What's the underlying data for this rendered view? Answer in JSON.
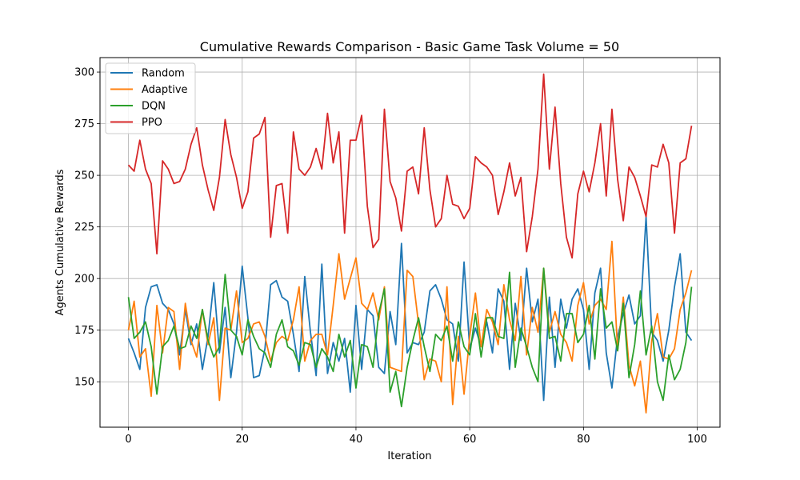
{
  "chart_data": {
    "type": "line",
    "title": "Cumulative Rewards Comparison - Basic Game Task Volume = 50",
    "xlabel": "Iteration",
    "ylabel": "Agents Cumulative Rewards",
    "xlim": [
      -5,
      104
    ],
    "ylim": [
      128,
      307
    ],
    "xticks": [
      0,
      20,
      40,
      60,
      80,
      100
    ],
    "yticks": [
      150,
      175,
      200,
      225,
      250,
      275,
      300
    ],
    "grid": true,
    "legend_position": "top-left",
    "x": [
      0,
      1,
      2,
      3,
      4,
      5,
      6,
      7,
      8,
      9,
      10,
      11,
      12,
      13,
      14,
      15,
      16,
      17,
      18,
      19,
      20,
      21,
      22,
      23,
      24,
      25,
      26,
      27,
      28,
      29,
      30,
      31,
      32,
      33,
      34,
      35,
      36,
      37,
      38,
      39,
      40,
      41,
      42,
      43,
      44,
      45,
      46,
      47,
      48,
      49,
      50,
      51,
      52,
      53,
      54,
      55,
      56,
      57,
      58,
      59,
      60,
      61,
      62,
      63,
      64,
      65,
      66,
      67,
      68,
      69,
      70,
      71,
      72,
      73,
      74,
      75,
      76,
      77,
      78,
      79,
      80,
      81,
      82,
      83,
      84,
      85,
      86,
      87,
      88,
      89,
      90,
      91,
      92,
      93,
      94,
      95,
      96,
      97,
      98,
      99
    ],
    "series": [
      {
        "name": "Random",
        "color": "#1f77b4",
        "values": [
          171,
          164,
          156,
          186,
          196,
          197,
          188,
          185,
          178,
          163,
          185,
          168,
          178,
          156,
          172,
          198,
          164,
          186,
          152,
          174,
          206,
          181,
          152,
          153,
          166,
          197,
          199,
          191,
          189,
          173,
          155,
          201,
          174,
          153,
          207,
          154,
          169,
          160,
          171,
          145,
          187,
          156,
          185,
          182,
          157,
          154,
          184,
          168,
          217,
          164,
          169,
          168,
          174,
          194,
          197,
          190,
          180,
          178,
          160,
          208,
          166,
          176,
          167,
          179,
          164,
          195,
          189,
          156,
          188,
          170,
          205,
          179,
          190,
          141,
          191,
          157,
          190,
          176,
          190,
          195,
          185,
          156,
          193,
          205,
          164,
          147,
          172,
          183,
          192,
          178,
          182,
          230,
          174,
          170,
          160,
          175,
          196,
          212,
          174,
          170
        ]
      },
      {
        "name": "Adaptive",
        "color": "#ff7f0e",
        "values": [
          175,
          189,
          162,
          166,
          143,
          187,
          164,
          186,
          184,
          156,
          188,
          170,
          162,
          185,
          168,
          181,
          141,
          176,
          175,
          194,
          169,
          171,
          178,
          179,
          172,
          160,
          169,
          172,
          170,
          180,
          196,
          160,
          170,
          173,
          173,
          163,
          187,
          212,
          190,
          200,
          210,
          188,
          185,
          193,
          180,
          196,
          157,
          156,
          155,
          204,
          201,
          178,
          151,
          161,
          160,
          150,
          196,
          139,
          172,
          144,
          172,
          193,
          167,
          185,
          179,
          168,
          197,
          180,
          170,
          201,
          163,
          186,
          174,
          205,
          174,
          184,
          173,
          169,
          160,
          187,
          198,
          178,
          187,
          190,
          185,
          218,
          165,
          191,
          158,
          148,
          160,
          135,
          170,
          183,
          162,
          161,
          166,
          185,
          193,
          204
        ]
      },
      {
        "name": "DQN",
        "color": "#2ca02c",
        "values": [
          191,
          171,
          174,
          179,
          167,
          144,
          167,
          170,
          177,
          166,
          167,
          177,
          171,
          185,
          170,
          162,
          167,
          202,
          175,
          172,
          163,
          180,
          172,
          166,
          164,
          157,
          173,
          180,
          167,
          165,
          158,
          169,
          168,
          157,
          166,
          162,
          155,
          173,
          162,
          170,
          147,
          168,
          167,
          157,
          183,
          195,
          145,
          155,
          138,
          157,
          170,
          181,
          167,
          155,
          173,
          170,
          177,
          160,
          179,
          167,
          163,
          183,
          162,
          181,
          181,
          172,
          171,
          203,
          157,
          176,
          167,
          157,
          150,
          205,
          171,
          172,
          160,
          183,
          183,
          169,
          173,
          187,
          161,
          195,
          176,
          179,
          165,
          188,
          152,
          168,
          194,
          163,
          177,
          150,
          141,
          163,
          151,
          156,
          169,
          196
        ]
      },
      {
        "name": "PPO",
        "color": "#d62728",
        "values": [
          255,
          252,
          267,
          253,
          246,
          212,
          257,
          253,
          246,
          247,
          253,
          265,
          273,
          255,
          243,
          233,
          249,
          277,
          260,
          249,
          234,
          242,
          268,
          270,
          278,
          220,
          245,
          246,
          222,
          271,
          253,
          250,
          254,
          263,
          253,
          280,
          256,
          271,
          222,
          267,
          267,
          279,
          235,
          215,
          219,
          282,
          247,
          239,
          223,
          252,
          254,
          241,
          273,
          243,
          225,
          229,
          250,
          236,
          235,
          229,
          234,
          259,
          256,
          254,
          250,
          231,
          242,
          256,
          240,
          249,
          213,
          230,
          253,
          299,
          253,
          283,
          246,
          220,
          210,
          241,
          252,
          242,
          256,
          275,
          240,
          282,
          248,
          228,
          254,
          249,
          240,
          230,
          255,
          254,
          265,
          256,
          222,
          256,
          258,
          274
        ]
      }
    ]
  }
}
